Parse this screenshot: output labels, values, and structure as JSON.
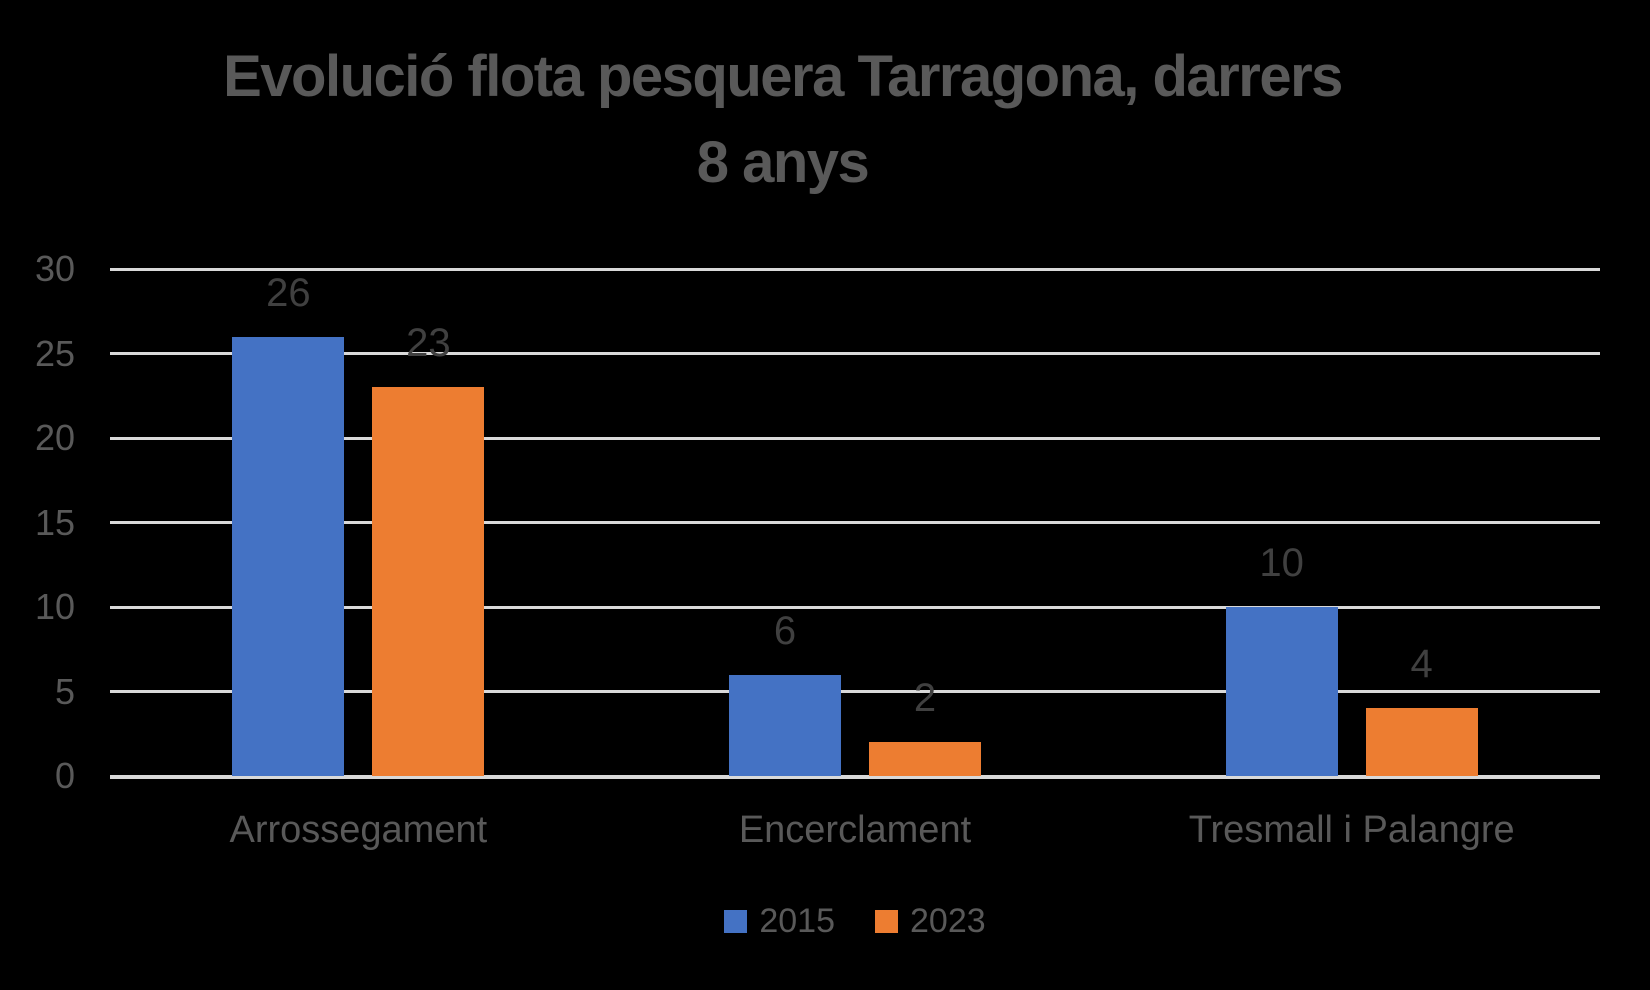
{
  "chart_data": {
    "type": "bar",
    "title": "Evolució flota pesquera Tarragona, darrers\n8 anys",
    "categories": [
      "Arrossegament",
      "Encerclament",
      "Tresmall i Palangre"
    ],
    "series": [
      {
        "name": "2015",
        "color": "#4472C4",
        "values": [
          26,
          6,
          10
        ]
      },
      {
        "name": "2023",
        "color": "#ED7D31",
        "values": [
          23,
          2,
          4
        ]
      }
    ],
    "xlabel": "",
    "ylabel": "",
    "ylim": [
      0,
      30
    ],
    "yticks": [
      0,
      5,
      10,
      15,
      20,
      25,
      30
    ],
    "grid": true,
    "data_labels": true,
    "legend_position": "bottom"
  },
  "colors": {
    "background": "#000000",
    "title_text": "#595959",
    "axis_text": "#595959",
    "data_label_text": "#404040",
    "gridline": "#D9D9D9",
    "series_2015": "#4472C4",
    "series_2023": "#ED7D31"
  }
}
